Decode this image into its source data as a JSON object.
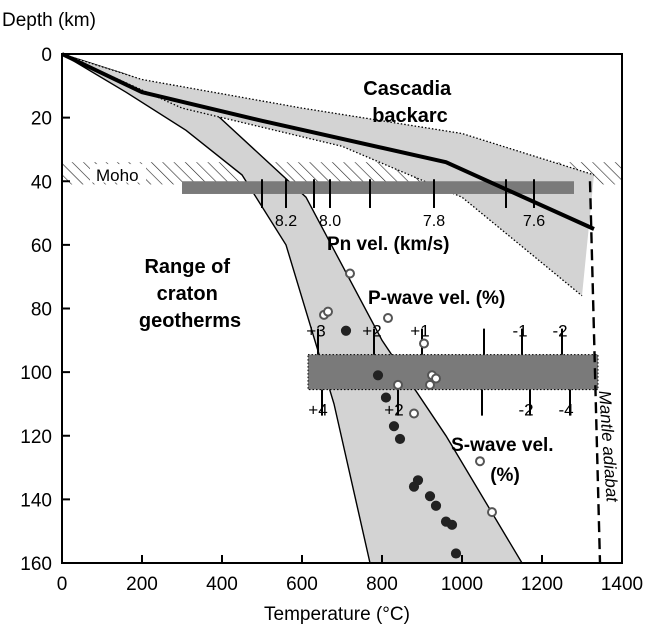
{
  "chart_data": {
    "type": "line",
    "xlabel": "Temperature (°C)",
    "ylabel": "Depth (km)",
    "xlim": [
      0,
      1400
    ],
    "ylim": [
      0,
      160
    ],
    "y_inverted": true,
    "x_ticks": [
      0,
      200,
      400,
      600,
      800,
      1000,
      1200,
      1400
    ],
    "y_ticks": [
      0,
      20,
      40,
      60,
      80,
      100,
      120,
      140,
      160
    ],
    "annotations": {
      "cascadia": "Cascadia\nbackarc",
      "craton": "Range of\ncraton\ngeotherms",
      "moho": "Moho",
      "mantle_adiabat": "Mantle adiabat",
      "pn_title": "Pn vel. (km/s)",
      "p_title": "P-wave vel. (%)",
      "s_title": "S-wave vel.\n(%)"
    },
    "cascadia_geotherm": {
      "x": [
        0,
        200,
        500,
        960,
        1330
      ],
      "y": [
        0,
        12,
        21,
        34,
        55
      ]
    },
    "cascadia_range": {
      "upper_x": [
        0,
        200,
        600,
        1000,
        1330
      ],
      "upper_y": [
        0,
        8,
        17,
        25,
        38
      ],
      "lower_x": [
        0,
        300,
        700,
        1000,
        1300
      ],
      "lower_y": [
        0,
        17,
        29,
        45,
        76
      ]
    },
    "craton_range": {
      "left_x": [
        0,
        160,
        310,
        450,
        560,
        680,
        770
      ],
      "left_y": [
        0,
        12,
        24,
        38,
        60,
        110,
        160
      ],
      "right_x": [
        0,
        150,
        360,
        610,
        800,
        960,
        1150
      ],
      "right_y": [
        0,
        6,
        16,
        45,
        90,
        120,
        160
      ]
    },
    "mantle_adiabat": {
      "x": [
        1320,
        1345
      ],
      "y": [
        40,
        160
      ]
    },
    "moho_band": {
      "y_top": 34,
      "y_bottom": 41
    },
    "pn_scale": {
      "depth_range": [
        40,
        44
      ],
      "x_range": [
        300,
        1280
      ],
      "ticks": [
        {
          "x": 500,
          "label": ""
        },
        {
          "x": 560,
          "label": "8.2"
        },
        {
          "x": 630,
          "label": ""
        },
        {
          "x": 670,
          "label": "8.0"
        },
        {
          "x": 770,
          "label": ""
        },
        {
          "x": 930,
          "label": "7.8"
        },
        {
          "x": 1110,
          "label": ""
        },
        {
          "x": 1180,
          "label": "7.6"
        }
      ]
    },
    "pwave_scale": {
      "depth_range": [
        94.5,
        105.5
      ],
      "x_range": [
        615,
        1340
      ],
      "ticks": [
        {
          "x": 640,
          "label": "+3"
        },
        {
          "x": 780,
          "label": "+2"
        },
        {
          "x": 900,
          "label": "+1"
        },
        {
          "x": 1055,
          "label": ""
        },
        {
          "x": 1150,
          "label": "-1"
        },
        {
          "x": 1250,
          "label": "-2"
        }
      ]
    },
    "swave_scale": {
      "ticks": [
        {
          "x": 650,
          "label": "+4"
        },
        {
          "x": 840,
          "label": "+2"
        },
        {
          "x": 1050,
          "label": ""
        },
        {
          "x": 1170,
          "label": "-2"
        },
        {
          "x": 1270,
          "label": "-4"
        }
      ]
    },
    "series": [
      {
        "marker": "filled",
        "x": [
          710,
          790,
          810,
          830,
          845,
          880,
          890,
          920,
          935,
          960,
          985,
          975
        ],
        "y": [
          87,
          101,
          108,
          117,
          121,
          136,
          134,
          139,
          142,
          147,
          157,
          148
        ]
      },
      {
        "marker": "open",
        "x": [
          655,
          665,
          720,
          815,
          840,
          880,
          905,
          920,
          925,
          935,
          1045,
          1075
        ],
        "y": [
          82,
          81,
          69,
          83,
          104,
          113,
          91,
          104,
          101,
          102,
          128,
          144
        ]
      }
    ]
  }
}
